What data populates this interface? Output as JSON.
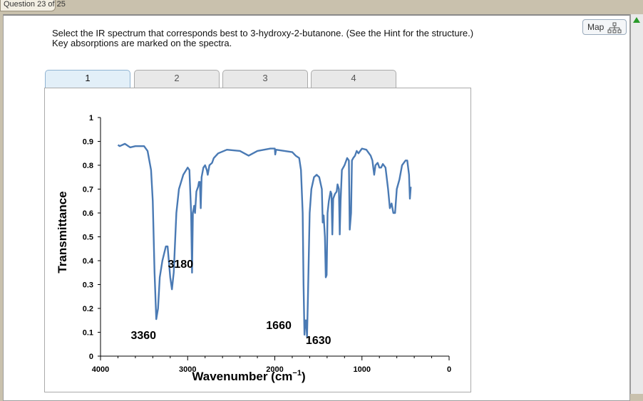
{
  "header": {
    "question_label": "Question 23 of 25"
  },
  "question": {
    "line1": "Select the IR spectrum that corresponds best to 3-hydroxy-2-butanone. (See the Hint for the structure.)",
    "line2": "Key absorptions are marked on the spectra."
  },
  "map_button": {
    "label": "Map",
    "icon": "sitemap-icon"
  },
  "tabs": [
    {
      "label": "1",
      "active": true
    },
    {
      "label": "2"
    },
    {
      "label": "3"
    },
    {
      "label": "4"
    }
  ],
  "colors": {
    "line": "#4a7ab4",
    "active_tab": "#e2eff8"
  },
  "chart_data": {
    "type": "line",
    "xlabel": "Wavenumber (cm",
    "xlabel_sup": "−1",
    "xlabel_close": ")",
    "ylabel": "Transmittance",
    "xlim": [
      4000,
      0
    ],
    "ylim": [
      0,
      1
    ],
    "xticks": [
      "4000",
      "3000",
      "2000",
      "1000",
      "0"
    ],
    "xtick_values": [
      4000,
      3000,
      2000,
      1000,
      0
    ],
    "yticks": [
      "0",
      "0.1",
      "0.2",
      "0.3",
      "0.4",
      "0.5",
      "0.6",
      "0.7",
      "0.8",
      "0.9",
      "1"
    ],
    "ytick_values": [
      0,
      0.1,
      0.2,
      0.3,
      0.4,
      0.5,
      0.6,
      0.7,
      0.8,
      0.9,
      1
    ],
    "grid": false,
    "annotations": [
      {
        "text": "3360",
        "x": 3360,
        "y": 0.155
      },
      {
        "text": "3180",
        "x": 3180,
        "y": 0.28
      },
      {
        "text": "1660",
        "x": 1660,
        "y": 0.09
      },
      {
        "text": "1630",
        "x": 1630,
        "y": 0.08
      }
    ],
    "series": [
      {
        "x": [
          3800,
          3780,
          3720,
          3680,
          3660,
          3600,
          3500,
          3460,
          3420,
          3400,
          3380,
          3360,
          3340,
          3320,
          3290,
          3250,
          3230,
          3200,
          3180,
          3160,
          3130,
          3100,
          3050,
          3000,
          2980,
          2960,
          2950,
          2940,
          2925,
          2915,
          2900,
          2880,
          2870,
          2860,
          2850,
          2840,
          2820,
          2800,
          2780,
          2770,
          2750,
          2720,
          2700,
          2650,
          2550,
          2400,
          2300,
          2200,
          2050,
          2000,
          1995,
          1985,
          1800,
          1760,
          1720,
          1700,
          1680,
          1670,
          1660,
          1650,
          1640,
          1630,
          1620,
          1600,
          1580,
          1550,
          1520,
          1490,
          1460,
          1450,
          1440,
          1425,
          1415,
          1405,
          1395,
          1380,
          1360,
          1350,
          1340,
          1330,
          1310,
          1290,
          1280,
          1265,
          1255,
          1245,
          1230,
          1200,
          1170,
          1150,
          1140,
          1125,
          1115,
          1100,
          1080,
          1060,
          1040,
          1020,
          1000,
          950,
          900,
          880,
          860,
          845,
          820,
          800,
          780,
          760,
          730,
          700,
          680,
          660,
          640,
          620,
          600,
          570,
          540,
          500,
          480,
          460,
          450,
          440
        ],
        "y": [
          0.885,
          0.88,
          0.89,
          0.88,
          0.875,
          0.88,
          0.88,
          0.86,
          0.78,
          0.65,
          0.35,
          0.155,
          0.2,
          0.33,
          0.4,
          0.46,
          0.46,
          0.33,
          0.28,
          0.35,
          0.6,
          0.7,
          0.76,
          0.79,
          0.78,
          0.6,
          0.35,
          0.6,
          0.63,
          0.6,
          0.69,
          0.71,
          0.73,
          0.73,
          0.62,
          0.75,
          0.79,
          0.8,
          0.78,
          0.76,
          0.8,
          0.81,
          0.83,
          0.85,
          0.865,
          0.86,
          0.84,
          0.86,
          0.87,
          0.87,
          0.845,
          0.865,
          0.855,
          0.84,
          0.83,
          0.78,
          0.6,
          0.3,
          0.09,
          0.15,
          0.15,
          0.08,
          0.25,
          0.6,
          0.7,
          0.75,
          0.76,
          0.75,
          0.7,
          0.56,
          0.59,
          0.5,
          0.33,
          0.34,
          0.6,
          0.65,
          0.69,
          0.68,
          0.51,
          0.66,
          0.68,
          0.69,
          0.72,
          0.7,
          0.51,
          0.65,
          0.78,
          0.8,
          0.83,
          0.82,
          0.53,
          0.6,
          0.82,
          0.83,
          0.84,
          0.86,
          0.85,
          0.86,
          0.87,
          0.865,
          0.84,
          0.82,
          0.76,
          0.8,
          0.81,
          0.79,
          0.79,
          0.805,
          0.79,
          0.7,
          0.62,
          0.64,
          0.6,
          0.6,
          0.7,
          0.74,
          0.8,
          0.82,
          0.82,
          0.76,
          0.66,
          0.71
        ]
      }
    ]
  }
}
